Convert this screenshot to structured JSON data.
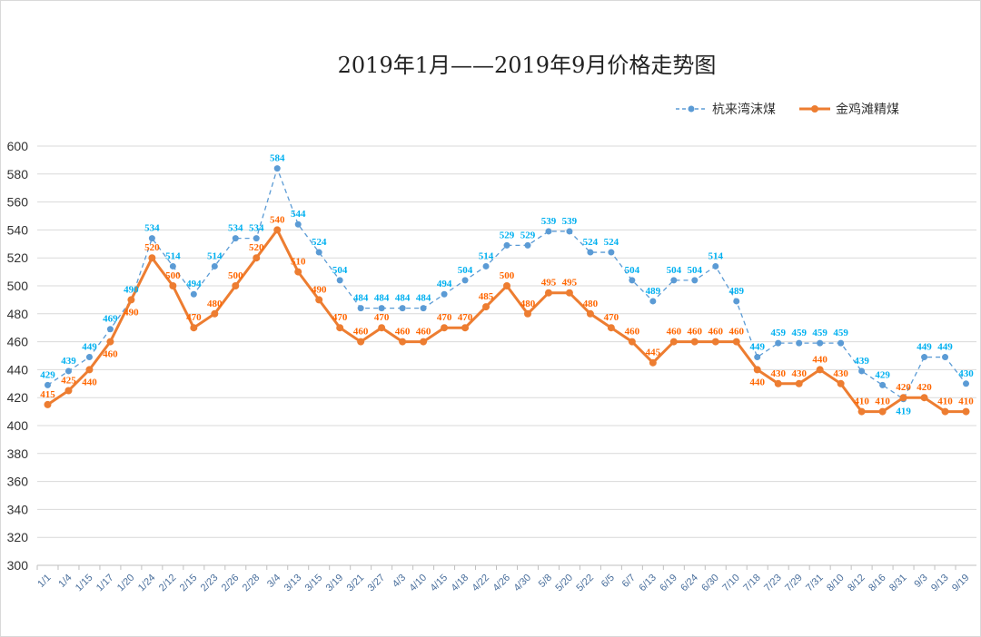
{
  "chart_data": {
    "type": "line",
    "title": "2019年1月——2019年9月价格走势图",
    "ylim": [
      300,
      600
    ],
    "yticks": [
      300,
      320,
      340,
      360,
      380,
      400,
      420,
      440,
      460,
      480,
      500,
      520,
      540,
      560,
      580,
      600
    ],
    "grid": true,
    "legend_position": "top-right",
    "categories": [
      "1/1",
      "1/4",
      "1/15",
      "1/17",
      "1/20",
      "1/24",
      "2/12",
      "2/15",
      "2/23",
      "2/26",
      "2/28",
      "3/4",
      "3/13",
      "3/15",
      "3/19",
      "3/21",
      "3/27",
      "4/3",
      "4/10",
      "4/15",
      "4/18",
      "4/22",
      "4/26",
      "4/30",
      "5/8",
      "5/20",
      "5/22",
      "6/5",
      "6/7",
      "6/13",
      "6/19",
      "6/24",
      "6/30",
      "7/10",
      "7/18",
      "7/23",
      "7/29",
      "7/31",
      "8/10",
      "8/12",
      "8/16",
      "8/31",
      "9/3",
      "9/13",
      "9/19"
    ],
    "series": [
      {
        "name": "杭来湾沫煤",
        "color": "#5b9bd5",
        "label_color": "#00b0f0",
        "style": "dashed",
        "values": [
          429,
          439,
          449,
          469,
          490,
          534,
          514,
          494,
          514,
          534,
          534,
          584,
          544,
          524,
          504,
          484,
          484,
          484,
          484,
          494,
          504,
          514,
          529,
          529,
          539,
          539,
          524,
          524,
          504,
          489,
          504,
          504,
          514,
          489,
          449,
          459,
          459,
          459,
          459,
          439,
          429,
          419,
          449,
          449,
          430
        ]
      },
      {
        "name": "金鸡滩精煤",
        "color": "#ed7d31",
        "label_color": "#ff6600",
        "style": "solid",
        "values": [
          415,
          425,
          440,
          460,
          490,
          520,
          500,
          470,
          480,
          500,
          520,
          540,
          510,
          490,
          470,
          460,
          470,
          460,
          460,
          470,
          470,
          485,
          500,
          480,
          495,
          495,
          480,
          470,
          460,
          445,
          460,
          460,
          460,
          460,
          440,
          430,
          430,
          440,
          430,
          410,
          410,
          420,
          420,
          410,
          410
        ]
      }
    ]
  }
}
